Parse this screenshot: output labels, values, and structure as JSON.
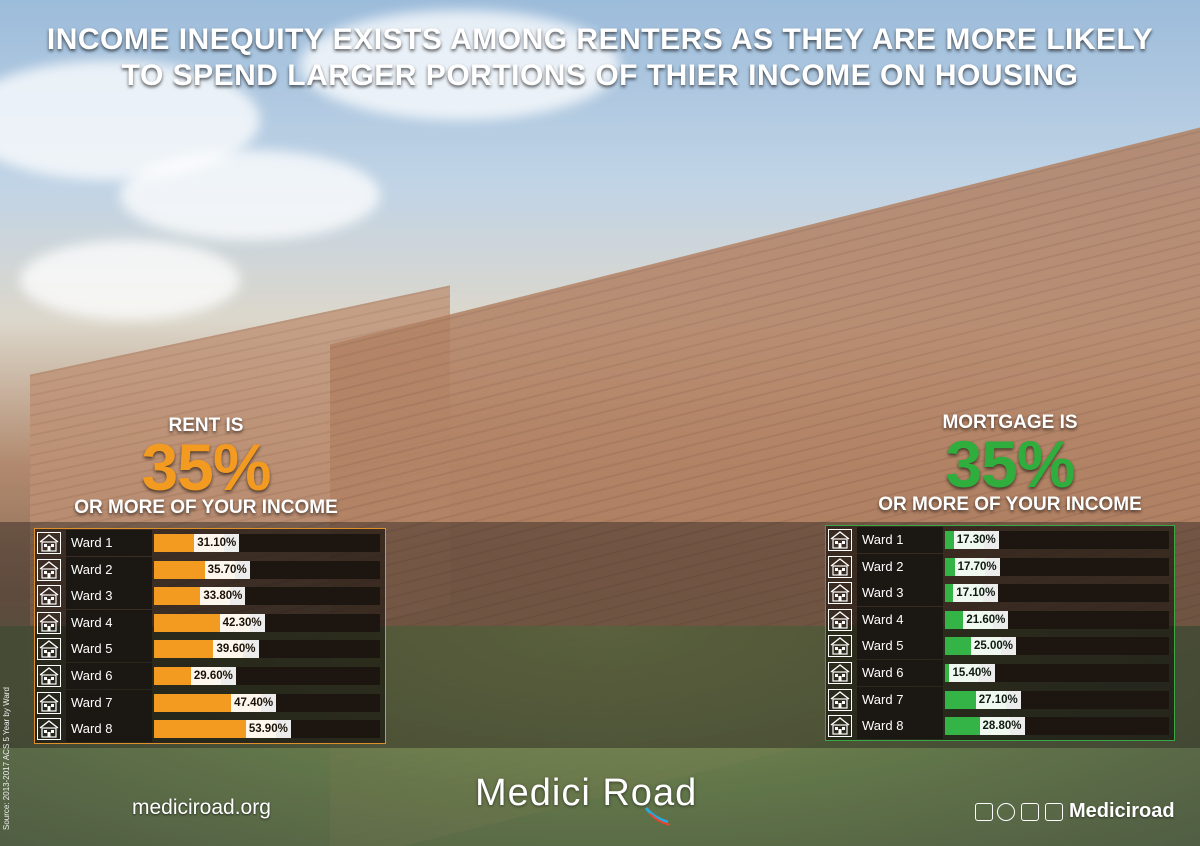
{
  "title": {
    "line1": "INCOME INEQUITY EXISTS AMONG RENTERS AS THEY ARE MORE LIKELY",
    "line2": "TO SPEND LARGER PORTIONS OF THIER INCOME ON HOUSING"
  },
  "rent": {
    "label_top": "RENT IS",
    "big": "35%",
    "label_bottom": "OR MORE OF YOUR INCOME"
  },
  "mortgage": {
    "label_top": "MORTGAGE IS",
    "big": "35%",
    "label_bottom": "OR MORE OF YOUR INCOME"
  },
  "colors": {
    "rent_accent": "#f39a21",
    "mortgage_accent": "#2fae3d"
  },
  "icons": {
    "row_icon": "house-icon",
    "social": [
      "facebook-icon",
      "twitter-icon",
      "linkedin-icon",
      "instagram-icon"
    ]
  },
  "chart_data": [
    {
      "type": "bar",
      "orientation": "horizontal",
      "categories": [
        "Ward 1",
        "Ward 2",
        "Ward 3",
        "Ward 4",
        "Ward 5",
        "Ward 6",
        "Ward 7",
        "Ward 8"
      ],
      "values": [
        31.1,
        35.7,
        33.8,
        42.3,
        39.6,
        29.6,
        47.4,
        53.9
      ],
      "value_labels": [
        "31.10%",
        "35.70%",
        "33.80%",
        "42.30%",
        "39.60%",
        "29.60%",
        "47.40%",
        "53.90%"
      ],
      "xlim": [
        0,
        100
      ],
      "grid": false
    },
    {
      "type": "bar",
      "orientation": "horizontal",
      "categories": [
        "Ward 1",
        "Ward 2",
        "Ward 3",
        "Ward 4",
        "Ward 5",
        "Ward 6",
        "Ward 7",
        "Ward 8"
      ],
      "values": [
        17.3,
        17.7,
        17.1,
        21.6,
        25.0,
        15.4,
        27.1,
        28.8
      ],
      "value_labels": [
        "17.30%",
        "17.70%",
        "17.10%",
        "21.60%",
        "25.00%",
        "15.40%",
        "27.10%",
        "28.80%"
      ],
      "xlim": [
        0,
        100
      ],
      "grid": false
    }
  ],
  "footer": {
    "source": "Source: 2013-2017 ACS 5 Year by Ward",
    "website": "mediciroad.org",
    "logo": "Medici Road",
    "handle": "Mediciroad"
  }
}
